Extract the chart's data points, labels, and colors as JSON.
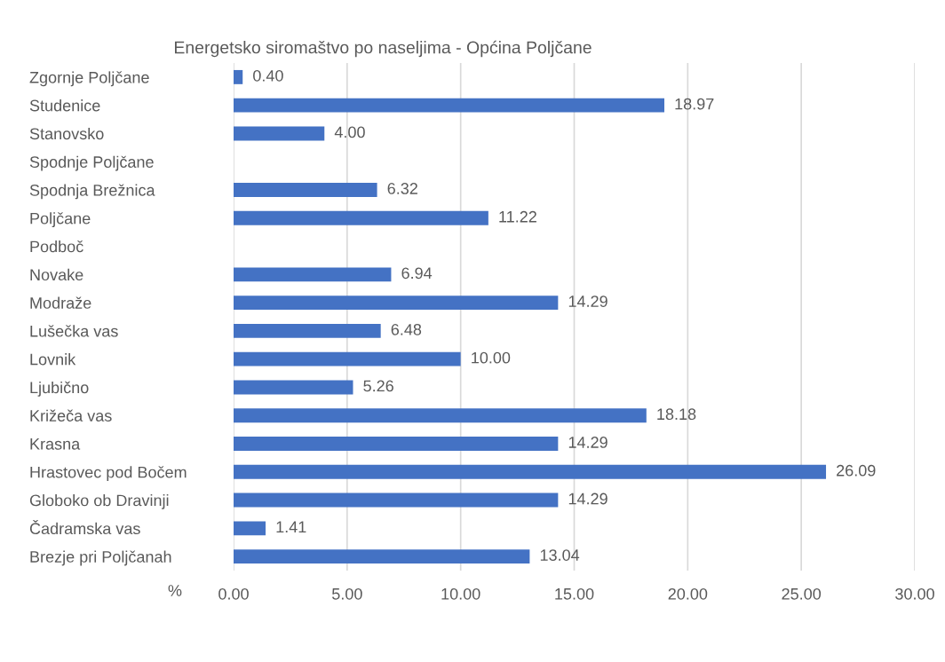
{
  "chart_data": {
    "type": "bar",
    "orientation": "horizontal",
    "title": "Energetsko siromaštvo po naseljima - Općina Poljčane",
    "xlabel": "%",
    "categories": [
      "Zgornje Poljčane",
      "Studenice",
      "Stanovsko",
      "Spodnje Poljčane",
      "Spodnja Brežnica",
      "Poljčane",
      "Podboč",
      "Novake",
      "Modraže",
      "Lušečka vas",
      "Lovnik",
      "Ljubično",
      "Križeča vas",
      "Krasna",
      "Hrastovec pod Bočem",
      "Globoko ob Dravinji",
      "Čadramska vas",
      "Brezje pri Poljčanah"
    ],
    "values": [
      0.4,
      18.97,
      4.0,
      null,
      6.32,
      11.22,
      null,
      6.94,
      14.29,
      6.48,
      10.0,
      5.26,
      18.18,
      14.29,
      26.09,
      14.29,
      1.41,
      13.04
    ],
    "value_labels": [
      "0.40",
      "18.97",
      "4.00",
      null,
      "6.32",
      "11.22",
      null,
      "6.94",
      "14.29",
      "6.48",
      "10.00",
      "5.26",
      "18.18",
      "14.29",
      "26.09",
      "14.29",
      "1.41",
      "13.04"
    ],
    "color": "#4472c4",
    "xlim": [
      0,
      30
    ],
    "xticks": [
      {
        "value": 0,
        "label": "0.00"
      },
      {
        "value": 5,
        "label": "5.00"
      },
      {
        "value": 10,
        "label": "10.00"
      },
      {
        "value": 15,
        "label": "15.00"
      },
      {
        "value": 20,
        "label": "20.00"
      },
      {
        "value": 25,
        "label": "25.00"
      },
      {
        "value": 30,
        "label": "30.00"
      }
    ],
    "grid": "x"
  }
}
